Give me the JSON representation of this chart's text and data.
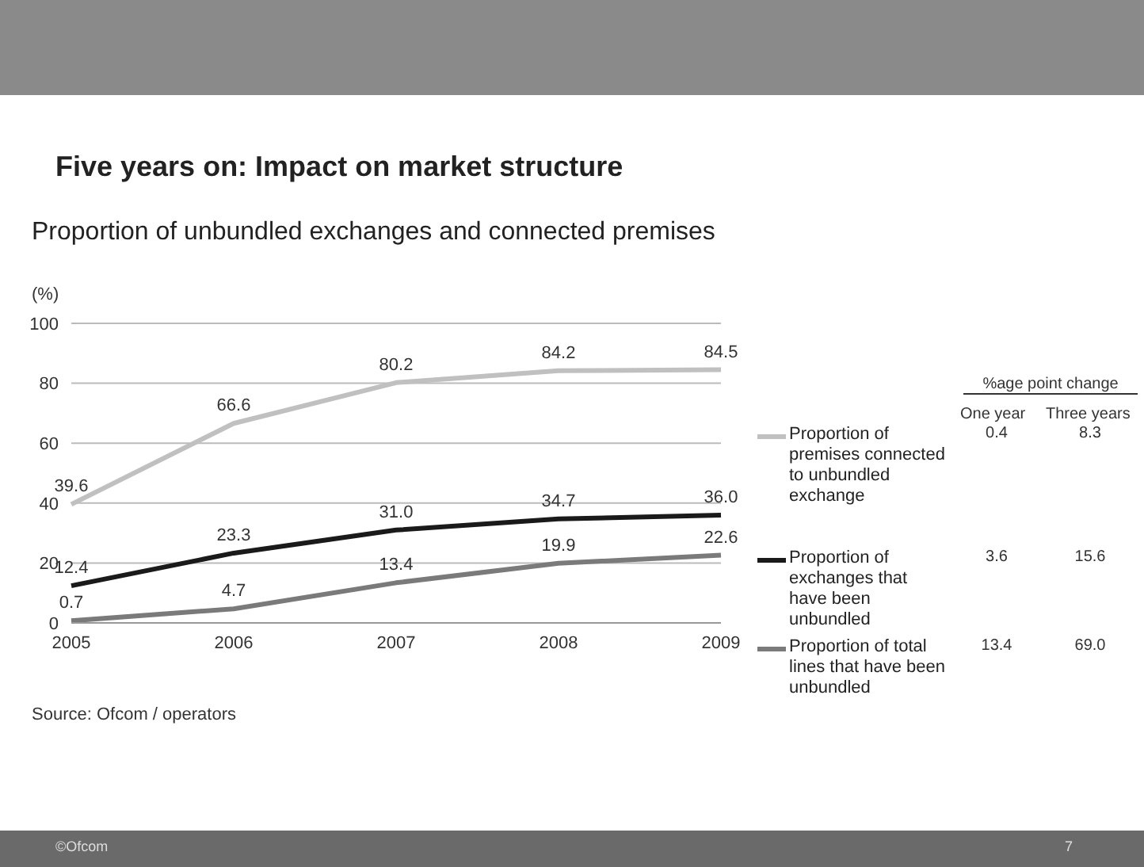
{
  "chart_data": {
    "type": "line",
    "title": "Five years on: Impact on market structure",
    "subtitle": "Proportion of unbundled exchanges and connected premises",
    "ylabel": "(%)",
    "categories": [
      "2005",
      "2006",
      "2007",
      "2008",
      "2009"
    ],
    "series": [
      {
        "name": "Proportion of premises connected to unbundled exchange",
        "color": "#c0c0c0",
        "values": [
          39.6,
          66.6,
          80.2,
          84.2,
          84.5
        ],
        "value_labels": [
          "39.6",
          "66.6",
          "80.2",
          "84.2",
          "84.5"
        ]
      },
      {
        "name": "Proportion of exchanges that have been unbundled",
        "color": "#1a1a1a",
        "values": [
          12.4,
          23.3,
          31.0,
          34.7,
          36.0
        ],
        "value_labels": [
          "12.4",
          "23.3",
          "31.0",
          "34.7",
          "36.0"
        ]
      },
      {
        "name": "Proportion of total lines that have been unbundled",
        "color": "#7a7a7a",
        "values": [
          0.7,
          4.7,
          13.4,
          19.9,
          22.6
        ],
        "value_labels": [
          "0.7",
          "4.7",
          "13.4",
          "19.9",
          "22.6"
        ]
      }
    ],
    "ylim": [
      0,
      100
    ],
    "yticks": [
      0,
      20,
      40,
      60,
      80,
      100
    ],
    "grid": "y",
    "legend": "right",
    "marker": "none",
    "line_style": "solid",
    "annotations": [
      "Source: Ofcom / operators",
      "%age point change",
      "One year",
      "Three years",
      "0.4",
      "8.3",
      "3.6",
      "15.6",
      "13.4",
      "69.0",
      "©Ofcom",
      "7"
    ]
  }
}
